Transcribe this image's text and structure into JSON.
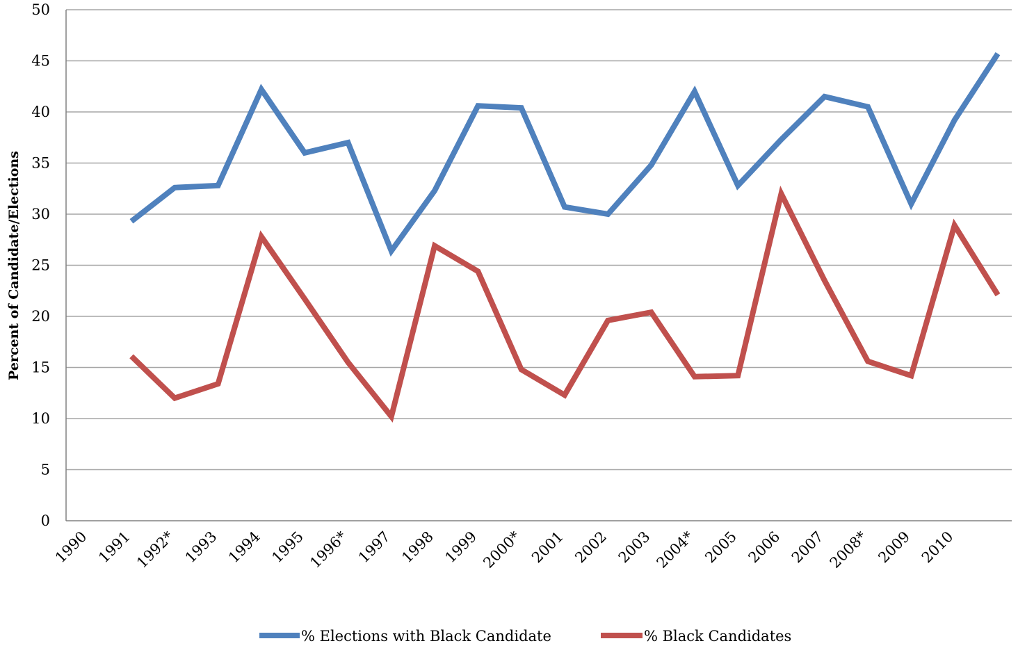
{
  "chart_data": {
    "type": "line",
    "title": "",
    "xlabel": "",
    "ylabel": "Percent of Candidate/Elections",
    "ylim": [
      0,
      50
    ],
    "yticks": [
      0,
      5,
      10,
      15,
      20,
      25,
      30,
      35,
      40,
      45,
      50
    ],
    "grid": true,
    "legend_position": "bottom",
    "categories": [
      "1990",
      "1991",
      "1992*",
      "1993",
      "1994",
      "1995",
      "1996*",
      "1997",
      "1998",
      "1999",
      "2000*",
      "2001",
      "2002",
      "2003",
      "2004*",
      "2005",
      "2006",
      "2007",
      "2008*",
      "2009",
      "2010"
    ],
    "series": [
      {
        "name": "% Elections with Black Candidate",
        "color": "#4f81bd",
        "values": [
          29.3,
          32.6,
          32.8,
          42.2,
          36.0,
          37.0,
          26.4,
          32.3,
          40.6,
          40.4,
          30.7,
          30.0,
          34.8,
          42.0,
          32.8,
          37.3,
          41.5,
          40.5,
          31.0,
          39.2,
          45.7
        ]
      },
      {
        "name": "% Black Candidates",
        "color": "#c0504d",
        "values": [
          16.1,
          12.0,
          13.4,
          27.8,
          21.7,
          15.5,
          10.2,
          26.9,
          24.4,
          14.8,
          12.3,
          19.6,
          20.4,
          14.1,
          14.2,
          32.0,
          23.5,
          15.6,
          14.2,
          28.9,
          22.1
        ]
      }
    ]
  }
}
